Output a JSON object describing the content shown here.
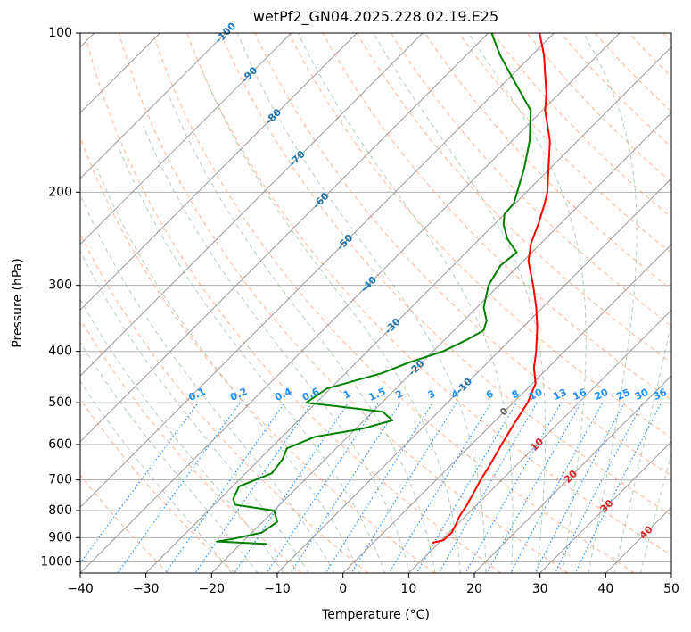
{
  "chart_data": {
    "type": "skew-t",
    "title": "wetPf2_GN04.2025.228.02.19.E25",
    "xlabel": "Temperature (°C)",
    "ylabel": "Pressure (hPa)",
    "xlim": [
      -40,
      50
    ],
    "ylim": [
      1050,
      100
    ],
    "y_scale": "log",
    "grid": true,
    "x_ticks": [
      -40,
      -30,
      -20,
      -10,
      0,
      10,
      20,
      30,
      40,
      50
    ],
    "x_tick_labels": [
      "−40",
      "−30",
      "−20",
      "−10",
      "0",
      "10",
      "20",
      "30",
      "40",
      "50"
    ],
    "y_ticks": [
      1000,
      900,
      800,
      700,
      600,
      500,
      400,
      300,
      200,
      100
    ],
    "y_tick_labels": [
      "1000",
      "900",
      "800",
      "700",
      "600",
      "500",
      "400",
      "300",
      "200",
      "100"
    ],
    "series": [
      {
        "color": "#ff0000",
        "points": [
          [
            920,
            9
          ],
          [
            910,
            10.3
          ],
          [
            880,
            10.4
          ],
          [
            850,
            9.8
          ],
          [
            820,
            9.1
          ],
          [
            780,
            8.5
          ],
          [
            700,
            6.8
          ],
          [
            650,
            5.8
          ],
          [
            600,
            4.6
          ],
          [
            550,
            3.4
          ],
          [
            500,
            2.2
          ],
          [
            460,
            0.5
          ],
          [
            430,
            -2.1
          ],
          [
            400,
            -4.3
          ],
          [
            360,
            -7.8
          ],
          [
            330,
            -11
          ],
          [
            300,
            -14.8
          ],
          [
            270,
            -19.2
          ],
          [
            250,
            -21.5
          ],
          [
            230,
            -23.3
          ],
          [
            210,
            -25.5
          ],
          [
            200,
            -26.8
          ],
          [
            180,
            -30.3
          ],
          [
            160,
            -34.2
          ],
          [
            140,
            -39.6
          ],
          [
            130,
            -42
          ],
          [
            110,
            -48.2
          ],
          [
            100,
            -52.2
          ]
        ]
      },
      {
        "color": "#008000",
        "points": [
          [
            925,
            -16
          ],
          [
            915,
            -24
          ],
          [
            905,
            -22
          ],
          [
            880,
            -18.5
          ],
          [
            840,
            -17.8
          ],
          [
            800,
            -20
          ],
          [
            780,
            -26.8
          ],
          [
            760,
            -28
          ],
          [
            720,
            -29
          ],
          [
            680,
            -26
          ],
          [
            640,
            -26.5
          ],
          [
            610,
            -27.5
          ],
          [
            580,
            -25
          ],
          [
            560,
            -19
          ],
          [
            540,
            -15.7
          ],
          [
            520,
            -18.5
          ],
          [
            500,
            -31.5
          ],
          [
            470,
            -30.5
          ],
          [
            440,
            -24.5
          ],
          [
            420,
            -22
          ],
          [
            400,
            -18.5
          ],
          [
            380,
            -16.6
          ],
          [
            365,
            -15.5
          ],
          [
            350,
            -16.5
          ],
          [
            330,
            -19
          ],
          [
            300,
            -21.6
          ],
          [
            275,
            -22.8
          ],
          [
            260,
            -22.3
          ],
          [
            245,
            -25.8
          ],
          [
            230,
            -28.6
          ],
          [
            220,
            -30
          ],
          [
            210,
            -30.2
          ],
          [
            180,
            -34
          ],
          [
            160,
            -37.3
          ],
          [
            140,
            -41.8
          ],
          [
            120,
            -50.2
          ],
          [
            110,
            -54.9
          ],
          [
            100,
            -59.5
          ]
        ]
      }
    ],
    "isotherm_labels": [
      "-100",
      "-90",
      "-80",
      "-70",
      "-60",
      "-50",
      "-40",
      "-30",
      "-20",
      "-10",
      "0",
      "10",
      "20",
      "30",
      "40"
    ],
    "mixing_ratio_labels": [
      "0.1",
      "0.2",
      "0.4",
      "0.6",
      "1",
      "1.5",
      "2",
      "3",
      "4",
      "6",
      "8",
      "10",
      "13",
      "16",
      "20",
      "25",
      "30",
      "36"
    ],
    "colors": {
      "temperature": "#ff0000",
      "dewpoint": "#008000",
      "isotherm": "#999999",
      "isotherm_label": "#1f77b4",
      "dry_adiabat": "#ffa07a",
      "moist_adiabat": "#8fbc8f",
      "mixing_ratio": "#1e90ff",
      "isotherm_label_warm": "#d62728"
    }
  }
}
